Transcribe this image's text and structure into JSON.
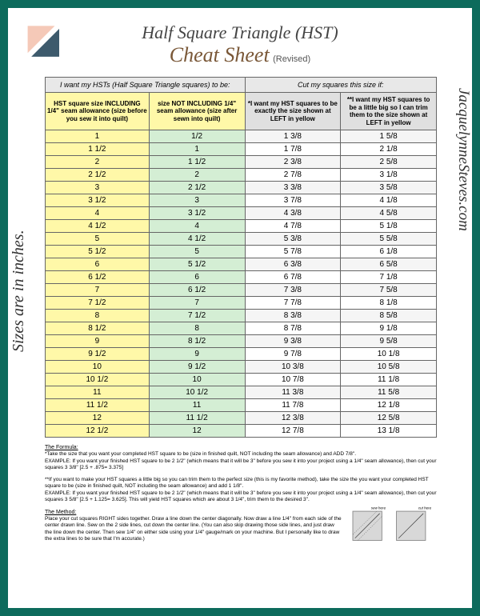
{
  "title_line1": "Half Square Triangle (HST)",
  "title_line2": "Cheat Sheet",
  "revised": "(Revised)",
  "side_label": "Sizes are in inches.",
  "right_label": "JacquelynneSteves.com",
  "header_left": "I want my HSTs (Half Square Triangle squares) to be:",
  "header_right": "Cut my squares this size if:",
  "col1": "HST square size INCLUDING 1/4\" seam allowance (size before you sew it into quilt)",
  "col2": "size NOT INCLUDING 1/4\" seam allowance (size after sewn into quilt)",
  "col3": "*I want my HST squares to be exactly the size shown at LEFT in yellow",
  "col4": "**I want my HST squares to be a little big so I can trim them to the size shown at LEFT in yellow",
  "rows": [
    [
      "1",
      "1/2",
      "1 3/8",
      "1 5/8"
    ],
    [
      "1 1/2",
      "1",
      "1 7/8",
      "2 1/8"
    ],
    [
      "2",
      "1 1/2",
      "2 3/8",
      "2 5/8"
    ],
    [
      "2 1/2",
      "2",
      "2 7/8",
      "3 1/8"
    ],
    [
      "3",
      "2 1/2",
      "3 3/8",
      "3 5/8"
    ],
    [
      "3 1/2",
      "3",
      "3 7/8",
      "4 1/8"
    ],
    [
      "4",
      "3 1/2",
      "4 3/8",
      "4 5/8"
    ],
    [
      "4 1/2",
      "4",
      "4 7/8",
      "5 1/8"
    ],
    [
      "5",
      "4 1/2",
      "5 3/8",
      "5 5/8"
    ],
    [
      "5 1/2",
      "5",
      "5 7/8",
      "6 1/8"
    ],
    [
      "6",
      "5 1/2",
      "6 3/8",
      "6 5/8"
    ],
    [
      "6 1/2",
      "6",
      "6 7/8",
      "7 1/8"
    ],
    [
      "7",
      "6 1/2",
      "7 3/8",
      "7 5/8"
    ],
    [
      "7 1/2",
      "7",
      "7 7/8",
      "8 1/8"
    ],
    [
      "8",
      "7 1/2",
      "8 3/8",
      "8 5/8"
    ],
    [
      "8 1/2",
      "8",
      "8 7/8",
      "9 1/8"
    ],
    [
      "9",
      "8 1/2",
      "9 3/8",
      "9 5/8"
    ],
    [
      "9 1/2",
      "9",
      "9 7/8",
      "10 1/8"
    ],
    [
      "10",
      "9 1/2",
      "10 3/8",
      "10 5/8"
    ],
    [
      "10 1/2",
      "10",
      "10 7/8",
      "11 1/8"
    ],
    [
      "11",
      "10 1/2",
      "11 3/8",
      "11 5/8"
    ],
    [
      "11 1/2",
      "11",
      "11 7/8",
      "12 1/8"
    ],
    [
      "12",
      "11 1/2",
      "12 3/8",
      "12 5/8"
    ],
    [
      "12 1/2",
      "12",
      "12 7/8",
      "13 1/8"
    ]
  ],
  "formula_title": "The Formula:",
  "formula_text1": "*Take the size that you want your completed HST square to be (size in finished quilt, NOT including the seam allowance) and ADD 7/8\".",
  "formula_text2": "EXAMPLE: If you want your finished HST square to be 2 1/2\" (which means that it will be 3\" before you sew it into your project using a 1/4\" seam allowance), then cut your squares 3 3/8\" [2.5 + .875= 3.375]",
  "formula_text3": "**If you want to make your HST squares a little big so you can trim them to the perfect size (this is my favorite method), take the size the you want your completed HST square to be (size in finished quilt, NOT including the seam allowance) and add 1 1/8\".",
  "formula_text4": "EXAMPLE: If you want your finished HST square to be 2 1/2\" (which means that it will be 3\" before you sew it into your project using a 1/4\" seam allowance), then cut your squares 3 5/8\" [2.5 + 1.125= 3.625]. This will yield HST squares which are about 3 1/4\", trim them to the desired 3\".",
  "method_title": "The Method:",
  "method_text": "Place your cut squares RIGHT sides together. Draw a line down the center diagonally. Now draw a line 1/4\" from each side of the center drawn line. Sew on the 2 side lines, cut down the center line. (You can also skip drawing those side lines, and just draw the line down the center. Then sew 1/4\" on either side using your 1/4\" gauge/mark on your machine. But I personally like to draw the extra lines to be sure that I'm accurate.)",
  "diagram_label1": "sew here",
  "diagram_label2": "cut here"
}
